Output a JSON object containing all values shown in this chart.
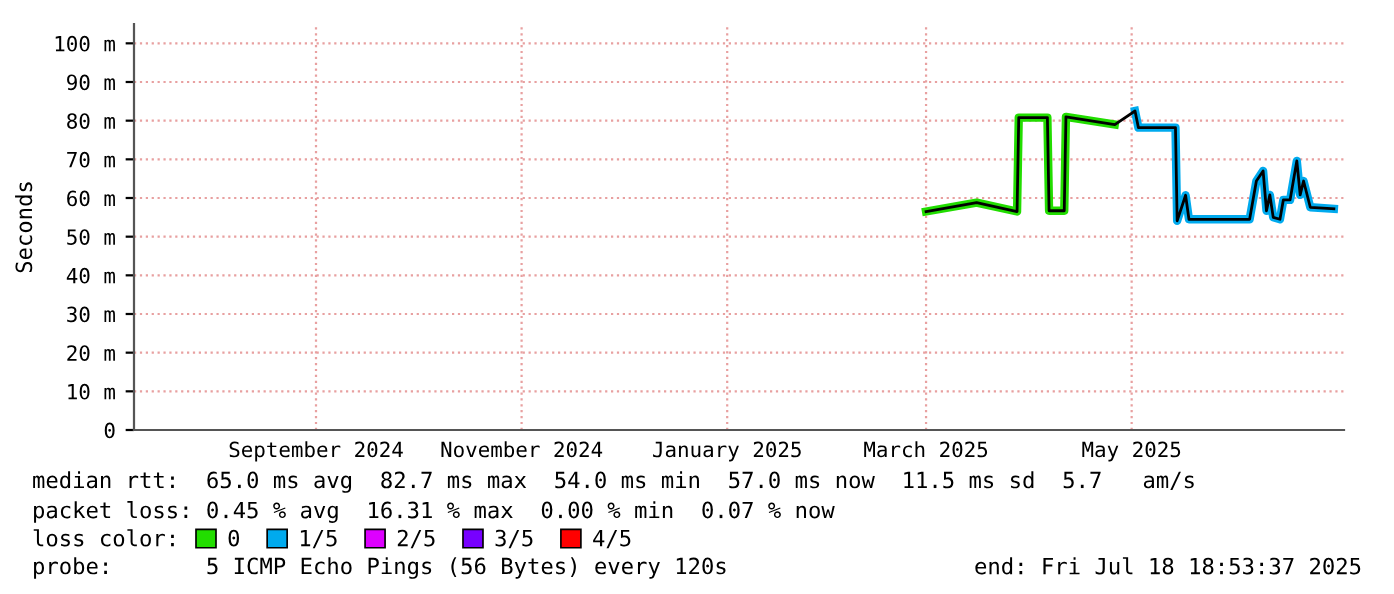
{
  "chart_data": {
    "type": "line",
    "ylabel": "Seconds",
    "x": [
      "2025-03-16",
      "2025-03-31",
      "2025-04-12T00:00",
      "2025-04-12T12:00",
      "2025-04-21T00:00",
      "2025-04-21T12:00",
      "2025-04-26T00:00",
      "2025-04-26T12:00",
      "2025-05-11",
      "2025-05-17",
      "2025-05-18",
      "2025-05-29T00:00",
      "2025-05-29T12:00",
      "2025-06-01",
      "2025-06-02",
      "2025-06-20",
      "2025-06-22",
      "2025-06-24",
      "2025-06-25",
      "2025-06-26",
      "2025-06-27",
      "2025-06-29",
      "2025-06-30",
      "2025-07-02",
      "2025-07-04",
      "2025-07-05",
      "2025-07-06",
      "2025-07-08",
      "2025-07-15"
    ],
    "series": [
      {
        "color": "#22dd00",
        "values": [
          56.5,
          58.8,
          56.5,
          80.8,
          80.8,
          56.7,
          56.7,
          81,
          79,
          null,
          null,
          null,
          null,
          null,
          null,
          null,
          null,
          null,
          null,
          null,
          null,
          null,
          null,
          null,
          null,
          null,
          null,
          null,
          null
        ],
        "name": "0"
      },
      {
        "color": "#00aaee",
        "values": [
          null,
          null,
          null,
          null,
          null,
          null,
          null,
          null,
          null,
          82.5,
          78.2,
          78.2,
          54.1,
          60.7,
          54.5,
          54.5,
          64.4,
          67,
          56.7,
          60.8,
          55,
          54.5,
          59.5,
          59.5,
          69.6,
          60.8,
          64.4,
          57.6,
          57.2
        ],
        "name": "1/5"
      },
      {
        "color": "#dd00ff",
        "values": [
          null,
          null,
          null,
          null,
          null,
          null,
          null,
          null,
          null,
          null,
          null,
          null,
          null,
          null,
          null,
          null,
          null,
          null,
          null,
          null,
          null,
          null,
          null,
          null,
          null,
          null,
          null,
          null,
          null
        ],
        "name": "2/5"
      },
      {
        "color": "#7700ff",
        "values": [
          null,
          null,
          null,
          null,
          null,
          null,
          null,
          null,
          null,
          null,
          null,
          null,
          null,
          null,
          null,
          null,
          null,
          null,
          null,
          null,
          null,
          null,
          null,
          null,
          null,
          null,
          null,
          null,
          null
        ],
        "name": "3/5"
      },
      {
        "color": "#ff0000",
        "values": [
          null,
          null,
          null,
          null,
          null,
          null,
          null,
          null,
          null,
          null,
          null,
          null,
          null,
          null,
          null,
          null,
          null,
          null,
          null,
          null,
          null,
          null,
          null,
          null,
          null,
          null,
          null,
          null,
          null
        ],
        "name": "4/5"
      },
      {
        "color": "#000000",
        "values": [
          56.5,
          58.8,
          56.5,
          80.8,
          80.8,
          56.7,
          56.7,
          81,
          79,
          82.5,
          78.2,
          78.2,
          54.1,
          60.7,
          54.5,
          54.5,
          64.4,
          67,
          56.7,
          60.8,
          55,
          54.5,
          59.5,
          59.5,
          69.6,
          60.8,
          64.4,
          57.6,
          57.2
        ]
      }
    ],
    "xlim": [
      "2024-07-24",
      "2025-07-18"
    ],
    "xticks": [
      {
        "value": "2024-09-16",
        "label": "September 2024"
      },
      {
        "value": "2024-11-16",
        "label": "November 2024"
      },
      {
        "value": "2025-01-16",
        "label": "January 2025"
      },
      {
        "value": "2025-03-16",
        "label": "March 2025"
      },
      {
        "value": "2025-05-16",
        "label": "May 2025"
      }
    ],
    "ylim": [
      0,
      105
    ],
    "yticks": [
      0,
      {
        "value": 10,
        "label": "10 m"
      },
      {
        "value": 20,
        "label": "20 m"
      },
      {
        "value": 30,
        "label": "30 m"
      },
      {
        "value": 40,
        "label": "40 m"
      },
      {
        "value": 50,
        "label": "50 m"
      },
      {
        "value": 60,
        "label": "60 m"
      },
      {
        "value": 70,
        "label": "70 m"
      },
      {
        "value": 80,
        "label": "80 m"
      },
      {
        "value": 90,
        "label": "90 m"
      },
      {
        "value": 100,
        "label": "100 m"
      }
    ],
    "grid": true,
    "legend": "bottom",
    "legend_title": "loss color:",
    "annotations": [
      "median rtt:  65.0 ms avg  82.7 ms max  54.0 ms min  57.0 ms now  11.5 ms sd  5.7   am/s",
      "packet loss: 0.45 % avg  16.31 % max  0.00 % min  0.07 % now",
      "probe:       5 ICMP Echo Pings (56 Bytes) every 120s",
      "end: Fri Jul 18 18:53:37 2025"
    ]
  }
}
